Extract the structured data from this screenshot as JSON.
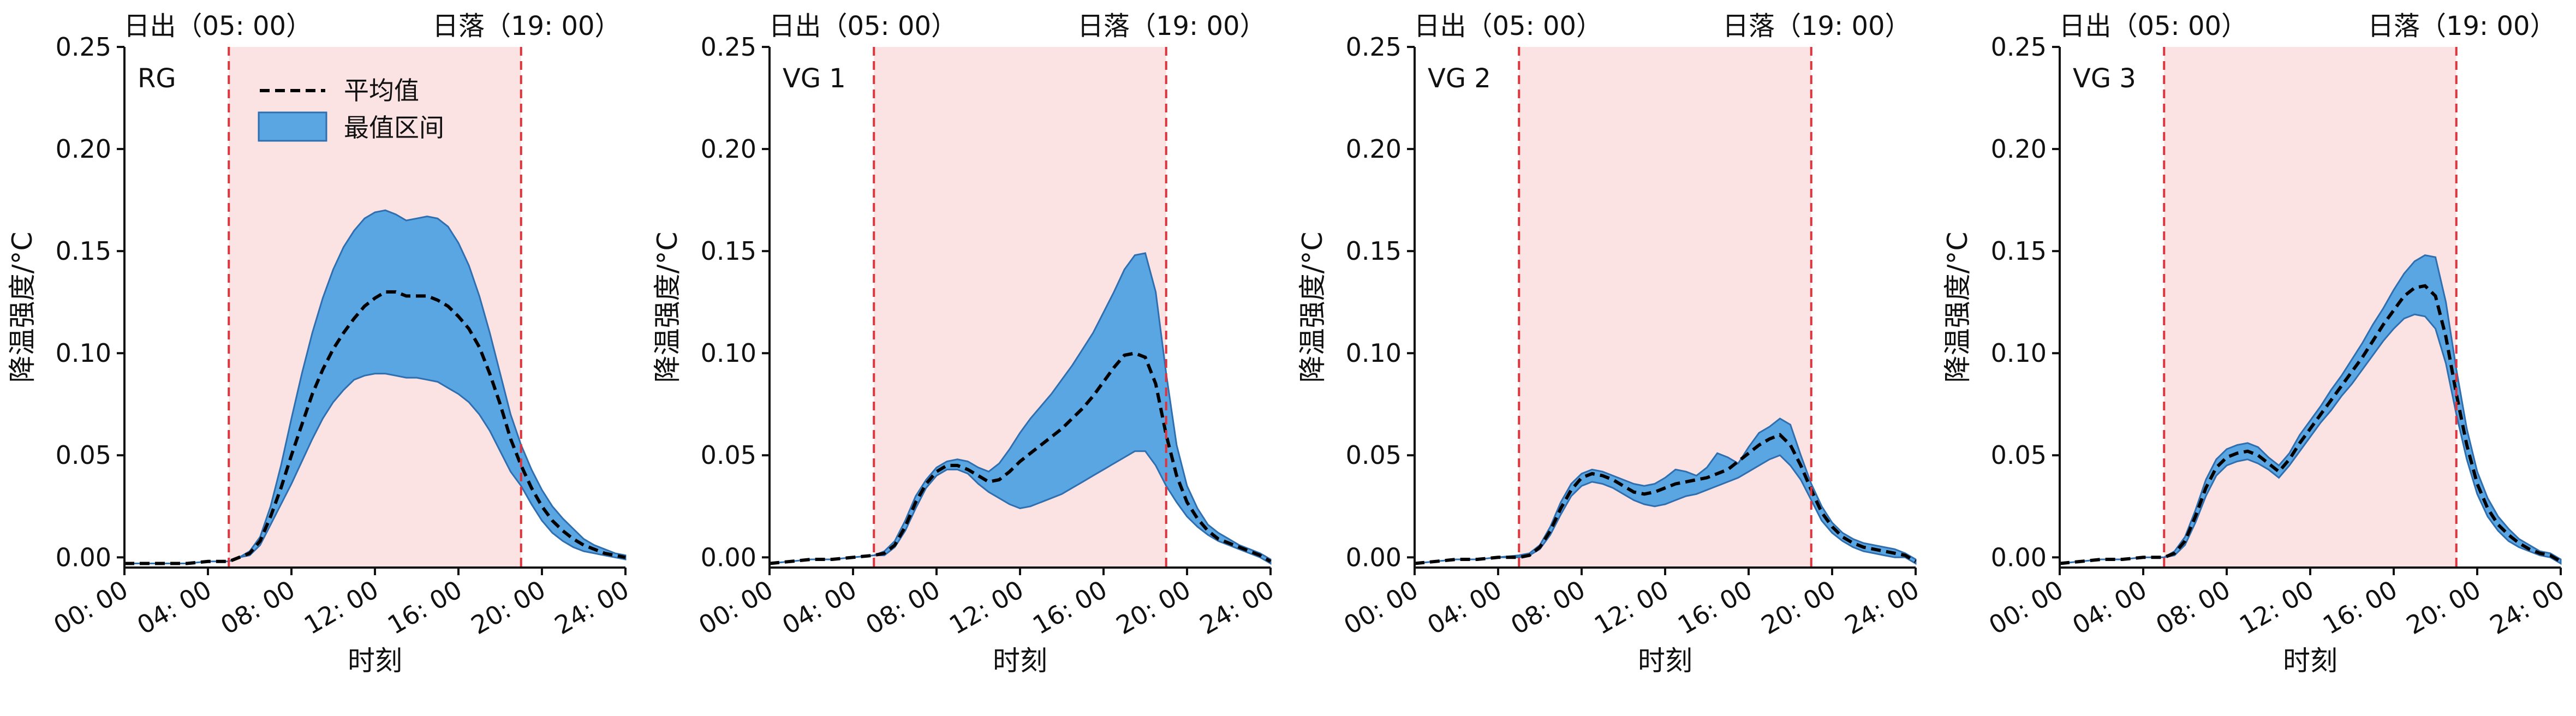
{
  "chart_data": {
    "type": "area",
    "shared": {
      "xlabel": "时刻",
      "ylabel": "降温强度/°C",
      "xlim": [
        0,
        24
      ],
      "ylim": [
        0,
        0.25
      ],
      "x_ticks": [
        0,
        4,
        8,
        12,
        16,
        20,
        24
      ],
      "x_tick_labels": [
        "00: 00",
        "04: 00",
        "08: 00",
        "12: 00",
        "16: 00",
        "20: 00",
        "24: 00"
      ],
      "y_ticks": [
        0,
        0.05,
        0.1,
        0.15,
        0.2,
        0.25
      ],
      "y_tick_labels": [
        "0.00",
        "0.05",
        "0.10",
        "0.15",
        "0.20",
        "0.25"
      ],
      "sunrise": {
        "x": 5,
        "label": "日出（05: 00）"
      },
      "sunset": {
        "x": 19,
        "label": "日落（19: 00）"
      },
      "daylight_color": "#fbe3e3",
      "marker_color": "#e0333a",
      "band_color": "#5aa6e2",
      "band_edge_color": "#2f6fb0",
      "mean_color": "#000000",
      "legend": {
        "mean": "平均值",
        "range": "最值区间",
        "position": "top-left"
      }
    },
    "panels": [
      {
        "label": "RG",
        "x": [
          0,
          1,
          2,
          3,
          4,
          5,
          5.5,
          6,
          6.5,
          7,
          7.5,
          8,
          8.5,
          9,
          9.5,
          10,
          10.5,
          11,
          11.5,
          12,
          12.5,
          13,
          13.5,
          14,
          14.5,
          15,
          15.5,
          16,
          16.5,
          17,
          17.5,
          18,
          18.5,
          19,
          19.5,
          20,
          20.5,
          21,
          21.5,
          22,
          22.5,
          23,
          23.5,
          24
        ],
        "mean": [
          -0.003,
          -0.003,
          -0.003,
          -0.003,
          -0.002,
          -0.002,
          0,
          0.002,
          0.008,
          0.02,
          0.034,
          0.05,
          0.065,
          0.08,
          0.092,
          0.102,
          0.11,
          0.117,
          0.123,
          0.127,
          0.13,
          0.13,
          0.128,
          0.128,
          0.128,
          0.126,
          0.123,
          0.118,
          0.112,
          0.103,
          0.09,
          0.075,
          0.058,
          0.045,
          0.034,
          0.025,
          0.018,
          0.013,
          0.009,
          0.006,
          0.004,
          0.002,
          0.001,
          0
        ],
        "upper": [
          -0.003,
          -0.003,
          -0.003,
          -0.003,
          -0.002,
          -0.002,
          0,
          0.003,
          0.01,
          0.025,
          0.045,
          0.068,
          0.09,
          0.11,
          0.127,
          0.141,
          0.152,
          0.16,
          0.166,
          0.169,
          0.17,
          0.168,
          0.165,
          0.166,
          0.167,
          0.166,
          0.162,
          0.154,
          0.143,
          0.128,
          0.11,
          0.09,
          0.07,
          0.055,
          0.043,
          0.033,
          0.025,
          0.019,
          0.014,
          0.009,
          0.006,
          0.004,
          0.002,
          0.001
        ],
        "lower": [
          -0.003,
          -0.003,
          -0.003,
          -0.003,
          -0.002,
          -0.002,
          0,
          0.001,
          0.006,
          0.016,
          0.026,
          0.036,
          0.047,
          0.058,
          0.068,
          0.076,
          0.082,
          0.087,
          0.089,
          0.09,
          0.09,
          0.089,
          0.088,
          0.088,
          0.087,
          0.086,
          0.083,
          0.08,
          0.076,
          0.07,
          0.062,
          0.052,
          0.042,
          0.035,
          0.026,
          0.018,
          0.012,
          0.008,
          0.005,
          0.003,
          0.002,
          0.001,
          0,
          -0.001
        ]
      },
      {
        "label": "VG 1",
        "x": [
          0,
          1,
          2,
          3,
          4,
          5,
          5.5,
          6,
          6.5,
          7,
          7.5,
          8,
          8.5,
          9,
          9.5,
          10,
          10.5,
          11,
          11.5,
          12,
          12.5,
          13,
          13.5,
          14,
          14.5,
          15,
          15.5,
          16,
          16.5,
          17,
          17.5,
          18,
          18.5,
          19,
          19.5,
          20,
          20.5,
          21,
          21.5,
          22,
          22.5,
          23,
          23.5,
          24
        ],
        "mean": [
          -0.003,
          -0.002,
          -0.001,
          -0.001,
          0,
          0.001,
          0.002,
          0.006,
          0.015,
          0.027,
          0.036,
          0.042,
          0.045,
          0.045,
          0.043,
          0.04,
          0.037,
          0.038,
          0.042,
          0.047,
          0.051,
          0.055,
          0.059,
          0.063,
          0.068,
          0.073,
          0.079,
          0.086,
          0.093,
          0.099,
          0.1,
          0.098,
          0.085,
          0.06,
          0.04,
          0.027,
          0.019,
          0.013,
          0.009,
          0.007,
          0.005,
          0.003,
          0.001,
          -0.002
        ],
        "upper": [
          -0.003,
          -0.002,
          -0.001,
          -0.001,
          0,
          0.001,
          0.003,
          0.008,
          0.018,
          0.03,
          0.038,
          0.044,
          0.047,
          0.048,
          0.047,
          0.044,
          0.042,
          0.046,
          0.053,
          0.061,
          0.068,
          0.074,
          0.08,
          0.087,
          0.094,
          0.102,
          0.11,
          0.12,
          0.13,
          0.141,
          0.148,
          0.149,
          0.13,
          0.09,
          0.055,
          0.035,
          0.024,
          0.016,
          0.012,
          0.009,
          0.006,
          0.004,
          0.002,
          -0.001
        ],
        "lower": [
          -0.003,
          -0.002,
          -0.001,
          -0.001,
          0,
          0.001,
          0.001,
          0.005,
          0.013,
          0.024,
          0.034,
          0.04,
          0.043,
          0.043,
          0.041,
          0.036,
          0.032,
          0.029,
          0.026,
          0.024,
          0.025,
          0.027,
          0.029,
          0.031,
          0.034,
          0.037,
          0.04,
          0.043,
          0.046,
          0.049,
          0.052,
          0.052,
          0.045,
          0.035,
          0.027,
          0.02,
          0.015,
          0.011,
          0.008,
          0.006,
          0.004,
          0.002,
          0,
          -0.003
        ]
      },
      {
        "label": "VG 2",
        "x": [
          0,
          1,
          2,
          3,
          4,
          5,
          5.5,
          6,
          6.5,
          7,
          7.5,
          8,
          8.5,
          9,
          9.5,
          10,
          10.5,
          11,
          11.5,
          12,
          12.5,
          13,
          13.5,
          14,
          14.5,
          15,
          15.5,
          16,
          16.5,
          17,
          17.5,
          18,
          18.5,
          19,
          19.5,
          20,
          20.5,
          21,
          21.5,
          22,
          22.5,
          23,
          23.5,
          24
        ],
        "mean": [
          -0.003,
          -0.002,
          -0.001,
          -0.001,
          0,
          0,
          0.001,
          0.005,
          0.013,
          0.024,
          0.033,
          0.039,
          0.041,
          0.04,
          0.038,
          0.035,
          0.032,
          0.031,
          0.032,
          0.034,
          0.036,
          0.037,
          0.038,
          0.039,
          0.041,
          0.043,
          0.047,
          0.051,
          0.055,
          0.058,
          0.06,
          0.055,
          0.045,
          0.033,
          0.022,
          0.015,
          0.01,
          0.007,
          0.005,
          0.004,
          0.003,
          0.002,
          0.001,
          -0.002
        ],
        "upper": [
          -0.003,
          -0.002,
          -0.001,
          -0.001,
          0,
          0.001,
          0.002,
          0.006,
          0.015,
          0.027,
          0.036,
          0.041,
          0.043,
          0.042,
          0.04,
          0.038,
          0.036,
          0.035,
          0.036,
          0.039,
          0.043,
          0.042,
          0.04,
          0.044,
          0.051,
          0.049,
          0.046,
          0.054,
          0.061,
          0.064,
          0.068,
          0.065,
          0.05,
          0.036,
          0.025,
          0.017,
          0.012,
          0.009,
          0.007,
          0.006,
          0.005,
          0.004,
          0.002,
          -0.001
        ],
        "lower": [
          -0.003,
          -0.002,
          -0.001,
          -0.001,
          0,
          0,
          0.001,
          0.004,
          0.011,
          0.021,
          0.03,
          0.035,
          0.037,
          0.036,
          0.034,
          0.031,
          0.028,
          0.026,
          0.025,
          0.026,
          0.028,
          0.03,
          0.031,
          0.033,
          0.035,
          0.037,
          0.039,
          0.042,
          0.045,
          0.048,
          0.05,
          0.045,
          0.038,
          0.028,
          0.018,
          0.012,
          0.008,
          0.005,
          0.003,
          0.002,
          0.001,
          0,
          0,
          -0.003
        ]
      },
      {
        "label": "VG 3",
        "x": [
          0,
          1,
          2,
          3,
          4,
          5,
          5.5,
          6,
          6.5,
          7,
          7.5,
          8,
          8.5,
          9,
          9.5,
          10,
          10.5,
          11,
          11.5,
          12,
          12.5,
          13,
          13.5,
          14,
          14.5,
          15,
          15.5,
          16,
          16.5,
          17,
          17.5,
          18,
          18.5,
          19,
          19.5,
          20,
          20.5,
          21,
          21.5,
          22,
          22.5,
          23,
          23.5,
          24
        ],
        "mean": [
          -0.003,
          -0.002,
          -0.001,
          -0.001,
          0,
          0,
          0.002,
          0.008,
          0.02,
          0.034,
          0.044,
          0.049,
          0.051,
          0.052,
          0.05,
          0.046,
          0.042,
          0.048,
          0.056,
          0.063,
          0.07,
          0.077,
          0.084,
          0.091,
          0.098,
          0.106,
          0.114,
          0.121,
          0.128,
          0.132,
          0.133,
          0.128,
          0.108,
          0.08,
          0.055,
          0.036,
          0.024,
          0.016,
          0.011,
          0.007,
          0.004,
          0.002,
          0.001,
          -0.002
        ],
        "upper": [
          -0.003,
          -0.002,
          -0.001,
          -0.001,
          0,
          0,
          0.003,
          0.01,
          0.023,
          0.038,
          0.048,
          0.053,
          0.055,
          0.056,
          0.054,
          0.049,
          0.045,
          0.051,
          0.06,
          0.067,
          0.074,
          0.082,
          0.089,
          0.097,
          0.105,
          0.114,
          0.122,
          0.131,
          0.139,
          0.145,
          0.148,
          0.147,
          0.125,
          0.092,
          0.063,
          0.042,
          0.029,
          0.02,
          0.014,
          0.009,
          0.006,
          0.003,
          0.002,
          -0.001
        ],
        "lower": [
          -0.003,
          -0.002,
          -0.001,
          -0.001,
          0,
          0,
          0.001,
          0.006,
          0.017,
          0.03,
          0.04,
          0.045,
          0.047,
          0.048,
          0.046,
          0.043,
          0.039,
          0.045,
          0.052,
          0.059,
          0.066,
          0.072,
          0.079,
          0.085,
          0.092,
          0.099,
          0.106,
          0.112,
          0.117,
          0.119,
          0.118,
          0.112,
          0.095,
          0.07,
          0.048,
          0.031,
          0.02,
          0.013,
          0.008,
          0.005,
          0.003,
          0.001,
          0,
          -0.003
        ]
      }
    ]
  }
}
